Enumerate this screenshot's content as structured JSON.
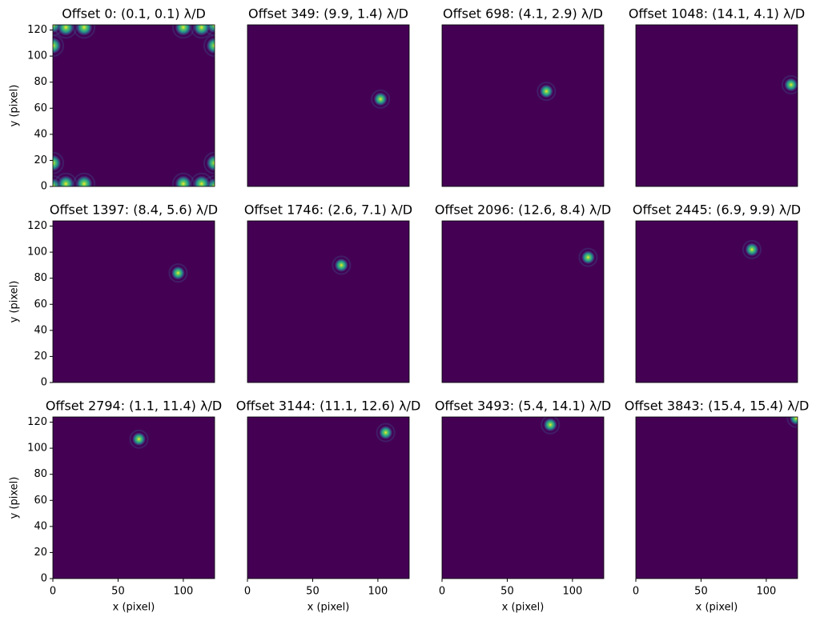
{
  "axes": {
    "xlabel": "x (pixel)",
    "ylabel": "y (pixel)",
    "xlim": [
      0,
      124
    ],
    "ylim": [
      0,
      124
    ],
    "xticks": [
      0,
      50,
      100
    ],
    "yticks": [
      0,
      20,
      40,
      60,
      80,
      100,
      120
    ]
  },
  "chart_data": [
    {
      "type": "image",
      "title": "Offset 0: (0.1, 0.1) λ/D",
      "x": [
        0,
        124,
        0,
        124,
        0,
        10,
        24,
        0,
        10,
        24,
        124,
        114,
        100,
        124,
        114,
        100
      ],
      "y": [
        0,
        0,
        124,
        124,
        108,
        122,
        122,
        18,
        2,
        2,
        108,
        122,
        122,
        18,
        2,
        2
      ]
    },
    {
      "type": "image",
      "title": "Offset 349: (9.9, 1.4) λ/D",
      "x": [
        102
      ],
      "y": [
        67
      ]
    },
    {
      "type": "image",
      "title": "Offset 698: (4.1, 2.9) λ/D",
      "x": [
        80
      ],
      "y": [
        73
      ]
    },
    {
      "type": "image",
      "title": "Offset 1048: (14.1, 4.1) λ/D",
      "x": [
        119
      ],
      "y": [
        78
      ]
    },
    {
      "type": "image",
      "title": "Offset 1397: (8.4, 5.6) λ/D",
      "x": [
        96
      ],
      "y": [
        84
      ]
    },
    {
      "type": "image",
      "title": "Offset 1746: (2.6, 7.1) λ/D",
      "x": [
        72
      ],
      "y": [
        90
      ]
    },
    {
      "type": "image",
      "title": "Offset 2096: (12.6, 8.4) λ/D",
      "x": [
        112
      ],
      "y": [
        96
      ]
    },
    {
      "type": "image",
      "title": "Offset 2445: (6.9, 9.9) λ/D",
      "x": [
        89
      ],
      "y": [
        102
      ]
    },
    {
      "type": "image",
      "title": "Offset 2794: (1.1, 11.4) λ/D",
      "x": [
        66
      ],
      "y": [
        107
      ]
    },
    {
      "type": "image",
      "title": "Offset 3144: (11.1, 12.6) λ/D",
      "x": [
        106
      ],
      "y": [
        112
      ]
    },
    {
      "type": "image",
      "title": "Offset 3493: (5.4, 14.1) λ/D",
      "x": [
        83
      ],
      "y": [
        118
      ]
    },
    {
      "type": "image",
      "title": "Offset 3843: (15.4, 15.4) λ/D",
      "x": [
        123
      ],
      "y": [
        123
      ]
    }
  ]
}
